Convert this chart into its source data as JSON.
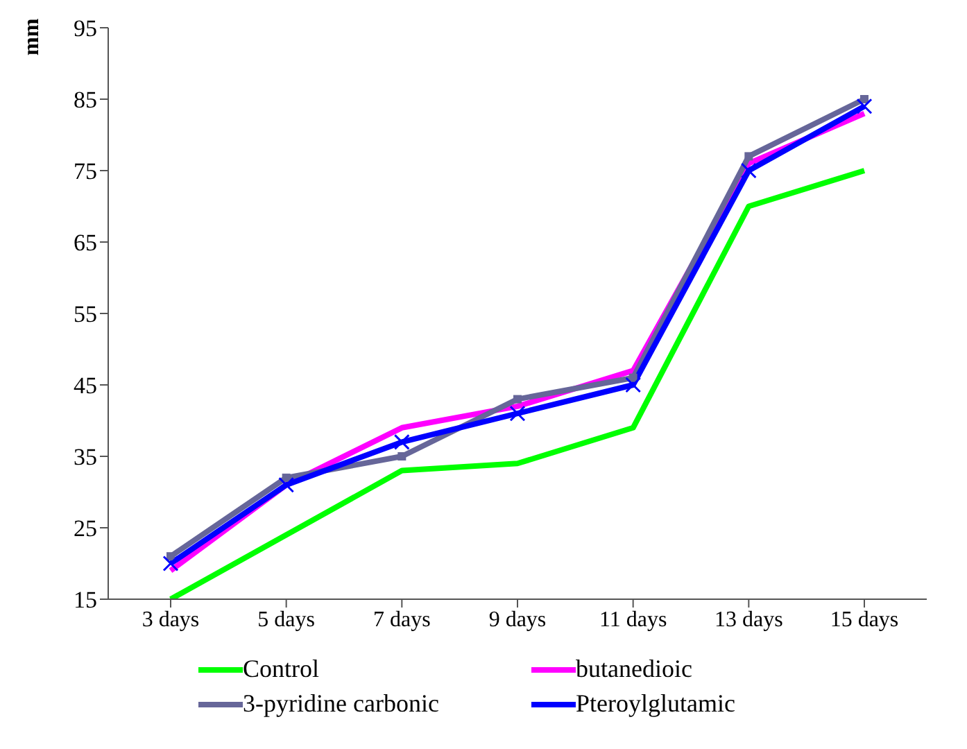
{
  "chart_data": {
    "type": "line",
    "ylabel": "mm",
    "categories": [
      "3 days",
      "5 days",
      "7 days",
      "9 days",
      "11 days",
      "13 days",
      "15 days"
    ],
    "series": [
      {
        "name": "Control",
        "color": "#00ff00",
        "marker": "none",
        "values": [
          15,
          24,
          33,
          34,
          39,
          70,
          75
        ]
      },
      {
        "name": "butanedioic",
        "color": "#ff00ff",
        "marker": "none",
        "values": [
          19,
          31,
          39,
          42,
          47,
          76,
          83
        ]
      },
      {
        "name": "3-pyridine carbonic",
        "color": "#666699",
        "marker": "square",
        "values": [
          21,
          32,
          35,
          43,
          46,
          77,
          85
        ]
      },
      {
        "name": "Pteroylglutamic",
        "color": "#0000ff",
        "marker": "cross",
        "values": [
          20,
          31,
          37,
          41,
          45,
          75,
          84
        ]
      }
    ],
    "ylim": [
      15,
      95
    ],
    "yticks": [
      15,
      25,
      35,
      45,
      55,
      65,
      75,
      85,
      95
    ],
    "grid": false,
    "legend": "bottom",
    "line_style": "solid"
  }
}
